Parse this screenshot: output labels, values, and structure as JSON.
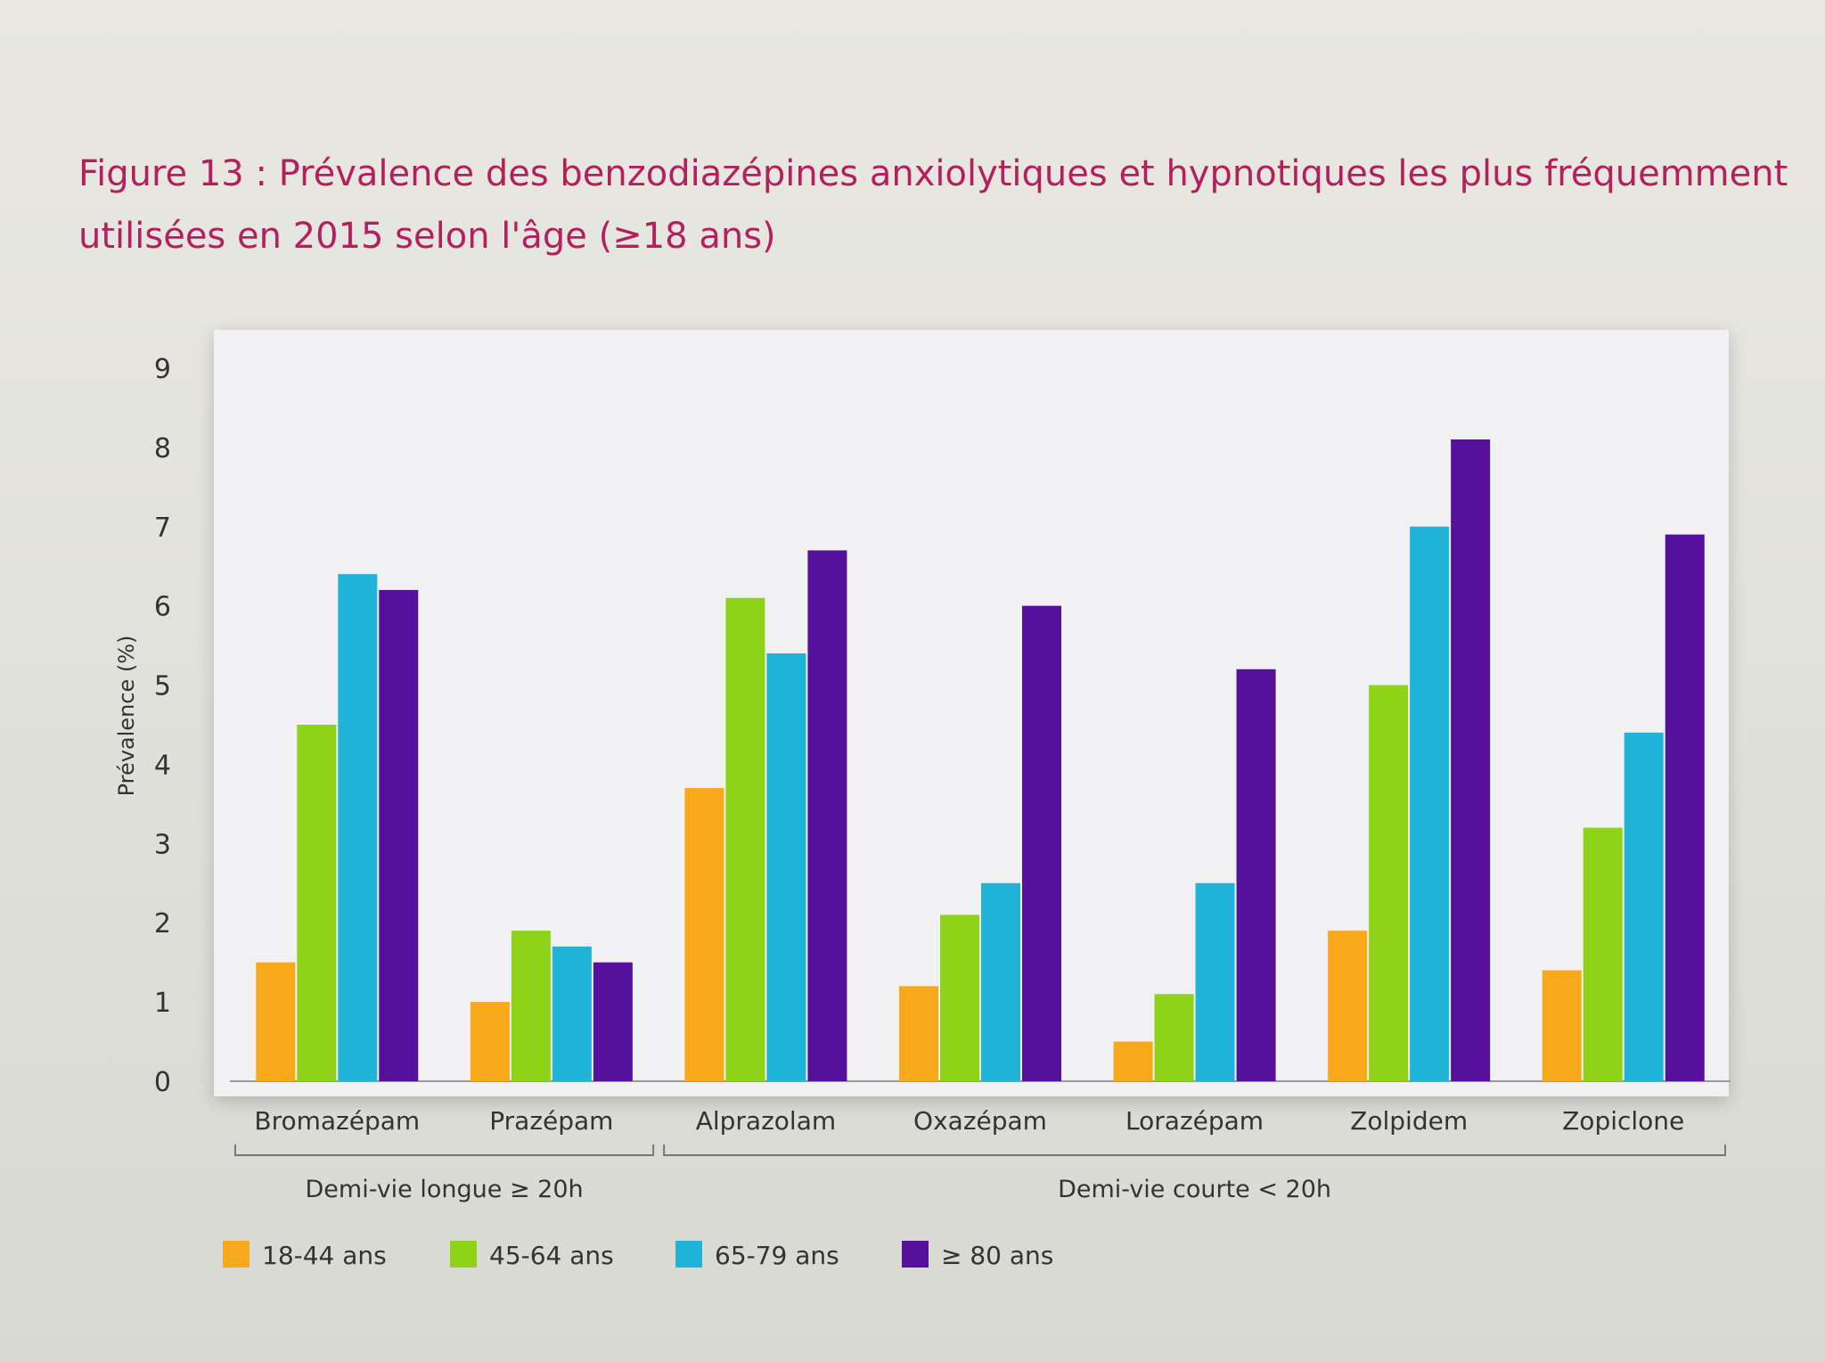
{
  "title": {
    "line1": "Figure 13 : Prévalence des benzodiazépines anxiolytiques et hypnotiques les plus fréquemment",
    "line2": "utilisées en 2015 selon l'âge (≥18 ans)"
  },
  "chart_data": {
    "type": "bar",
    "ylabel": "Prévalence (%)",
    "xlabel": "",
    "ylim": [
      0,
      9
    ],
    "yticks": [
      "0",
      "1",
      "2",
      "3",
      "4",
      "5",
      "6",
      "7",
      "8",
      "9"
    ],
    "grid": false,
    "legend_position": "bottom-left",
    "categories": [
      "Bromazépam",
      "Prazépam",
      "Alprazolam",
      "Oxazépam",
      "Lorazépam",
      "Zolpidem",
      "Zopiclone"
    ],
    "groups": [
      {
        "label": "Demi-vie longue ≥ 20h",
        "from": 0,
        "to": 1
      },
      {
        "label": "Demi-vie courte < 20h",
        "from": 2,
        "to": 6
      }
    ],
    "series": [
      {
        "name": "18-44 ans",
        "color": "#f7a81b",
        "values": [
          1.5,
          1.0,
          3.7,
          1.2,
          0.5,
          1.9,
          1.4
        ]
      },
      {
        "name": "45-64 ans",
        "color": "#8ed318",
        "values": [
          4.5,
          1.9,
          6.1,
          2.1,
          1.1,
          5.0,
          3.2
        ]
      },
      {
        "name": "65-79 ans",
        "color": "#20b4d8",
        "values": [
          6.4,
          1.7,
          5.4,
          2.5,
          2.5,
          7.0,
          4.4
        ]
      },
      {
        "name": "≥ 80 ans",
        "color": "#55119c",
        "values": [
          6.2,
          1.5,
          6.7,
          6.0,
          5.2,
          8.1,
          6.9
        ]
      }
    ]
  }
}
